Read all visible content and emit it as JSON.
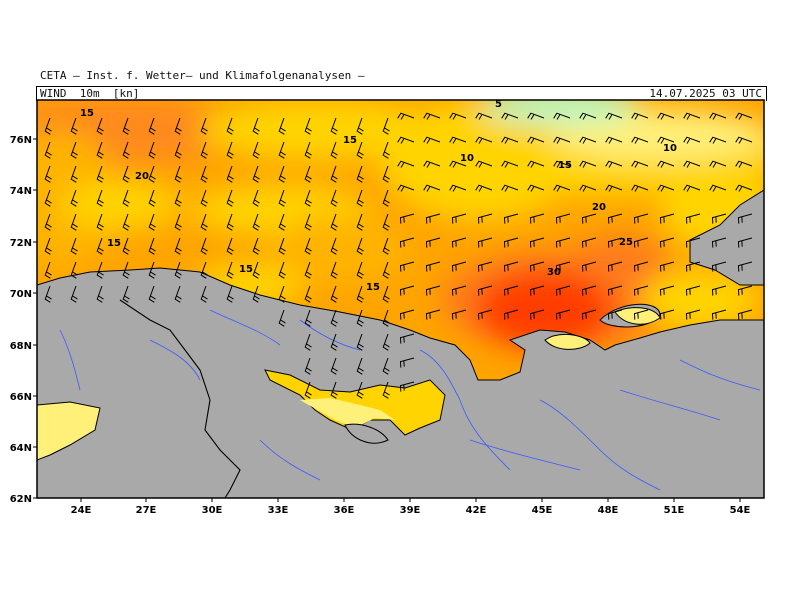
{
  "header": {
    "producer": "CETA — Inst. f. Wetter— und Klimafolgenanalysen —",
    "field": "WIND  10m  [kn]",
    "valid_time": "14.07.2025 03 UTC"
  },
  "axes": {
    "lat_labels": [
      "76N",
      "74N",
      "72N",
      "70N",
      "68N",
      "66N",
      "64N",
      "62N"
    ],
    "lon_labels": [
      "24E",
      "27E",
      "30E",
      "33E",
      "36E",
      "39E",
      "42E",
      "45E",
      "48E",
      "51E",
      "54E"
    ]
  },
  "contour_labels": [
    "15",
    "15",
    "20",
    "15",
    "15",
    "15",
    "10",
    "15",
    "20",
    "25",
    "30",
    "10",
    "5"
  ],
  "colors": {
    "land": "#a9a9a9",
    "calm": "#b9f5c0",
    "light": "#fff07a",
    "moderate": "#ffd400",
    "fresh": "#ffa400",
    "strong": "#ff7b1a",
    "gale": "#ff3c00",
    "rivers": "#3a5bff",
    "border": "#000000"
  }
}
